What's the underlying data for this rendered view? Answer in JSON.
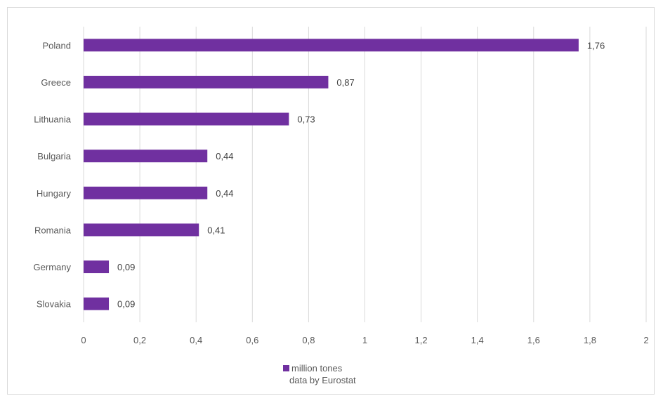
{
  "chart_data": {
    "type": "bar",
    "orientation": "horizontal",
    "categories": [
      "Poland",
      "Greece",
      "Lithuania",
      "Bulgaria",
      "Hungary",
      "Romania",
      "Germany",
      "Slovakia"
    ],
    "values": [
      1.76,
      0.87,
      0.73,
      0.44,
      0.44,
      0.41,
      0.09,
      0.09
    ],
    "value_labels": [
      "1,76",
      "0,87",
      "0,73",
      "0,44",
      "0,44",
      "0,41",
      "0,09",
      "0,09"
    ],
    "series": [
      {
        "name": "million tones",
        "values": [
          1.76,
          0.87,
          0.73,
          0.44,
          0.44,
          0.41,
          0.09,
          0.09
        ]
      }
    ],
    "xlim": [
      0,
      2
    ],
    "x_ticks": [
      0,
      0.2,
      0.4,
      0.6,
      0.8,
      1,
      1.2,
      1.4,
      1.6,
      1.8,
      2
    ],
    "x_tick_labels": [
      "0",
      "0,2",
      "0,4",
      "0,6",
      "0,8",
      "1",
      "1,2",
      "1,4",
      "1,6",
      "1,8",
      "2"
    ],
    "grid": "vertical",
    "legend_position": "bottom",
    "legend_label": "million tones",
    "note": "data by Eurostat",
    "bar_color": "#7030a0",
    "title": "",
    "xlabel": "",
    "ylabel": ""
  }
}
